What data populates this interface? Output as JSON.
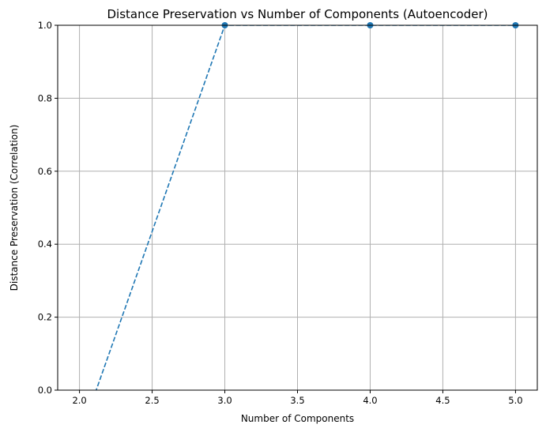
{
  "chart_data": {
    "type": "line",
    "title": "Distance Preservation vs Number of Components (Autoencoder)",
    "xlabel": "Number of Components",
    "ylabel": "Distance Preservation (Correlation)",
    "xlim": [
      1.85,
      5.15
    ],
    "ylim": [
      0.0,
      1.0
    ],
    "x_ticks": [
      2.0,
      2.5,
      3.0,
      3.5,
      4.0,
      4.5,
      5.0
    ],
    "x_tick_labels": [
      "2.0",
      "2.5",
      "3.0",
      "3.5",
      "4.0",
      "4.5",
      "5.0"
    ],
    "y_ticks": [
      0.0,
      0.2,
      0.4,
      0.6,
      0.8,
      1.0
    ],
    "y_tick_labels": [
      "0.0",
      "0.2",
      "0.4",
      "0.6",
      "0.8",
      "1.0"
    ],
    "grid": true,
    "series": [
      {
        "x": [
          2,
          3,
          4,
          5
        ],
        "values": [
          -0.13,
          1.0,
          1.0,
          1.0
        ],
        "color": "#1f77b4",
        "linestyle": "dashed",
        "marker": "circle"
      }
    ]
  }
}
